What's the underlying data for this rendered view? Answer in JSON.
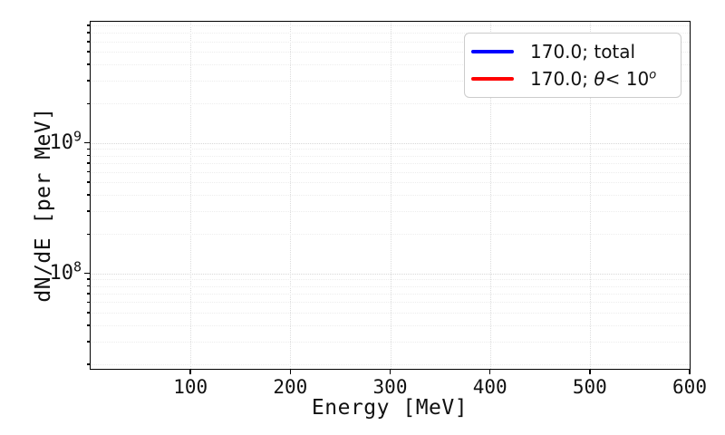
{
  "chart_data": {
    "type": "line",
    "title": "",
    "xlabel": "Energy [MeV]",
    "ylabel": "dN/dE [per MeV]",
    "xscale": "linear",
    "yscale": "log",
    "xlim": [
      0,
      600
    ],
    "ylim": [
      18500000,
      8500000000
    ],
    "x_ticks": [
      100,
      200,
      300,
      400,
      500,
      600
    ],
    "y_ticks": [
      {
        "value": 100000000,
        "base": "10",
        "exp": "8"
      },
      {
        "value": 1000000000,
        "base": "10",
        "exp": "9"
      }
    ],
    "grid": "major and minor, dotted light gray, both axes",
    "legend_position": "upper right",
    "series": [
      {
        "name": "170.0; total",
        "color": "#0000ff",
        "values": []
      },
      {
        "name": "170.0; θ< 10^o",
        "color": "#ff0000",
        "values": []
      }
    ]
  },
  "legend": {
    "entries": [
      {
        "color": "#0000ff",
        "parts": [
          {
            "t": "170.0; total"
          }
        ]
      },
      {
        "color": "#ff0000",
        "parts": [
          {
            "t": "170.0; "
          },
          {
            "t": "θ",
            "italic": true
          },
          {
            "t": "< 10"
          },
          {
            "t": "o",
            "italic": true,
            "sup": true
          }
        ]
      }
    ]
  },
  "colors": {
    "background": "#ffffff",
    "spine": "#000000",
    "grid_major": "#d8d8d8",
    "grid_minor": "#ededed",
    "series_blue": "#0000ff",
    "series_red": "#ff0000",
    "legend_border": "#cccccc"
  }
}
